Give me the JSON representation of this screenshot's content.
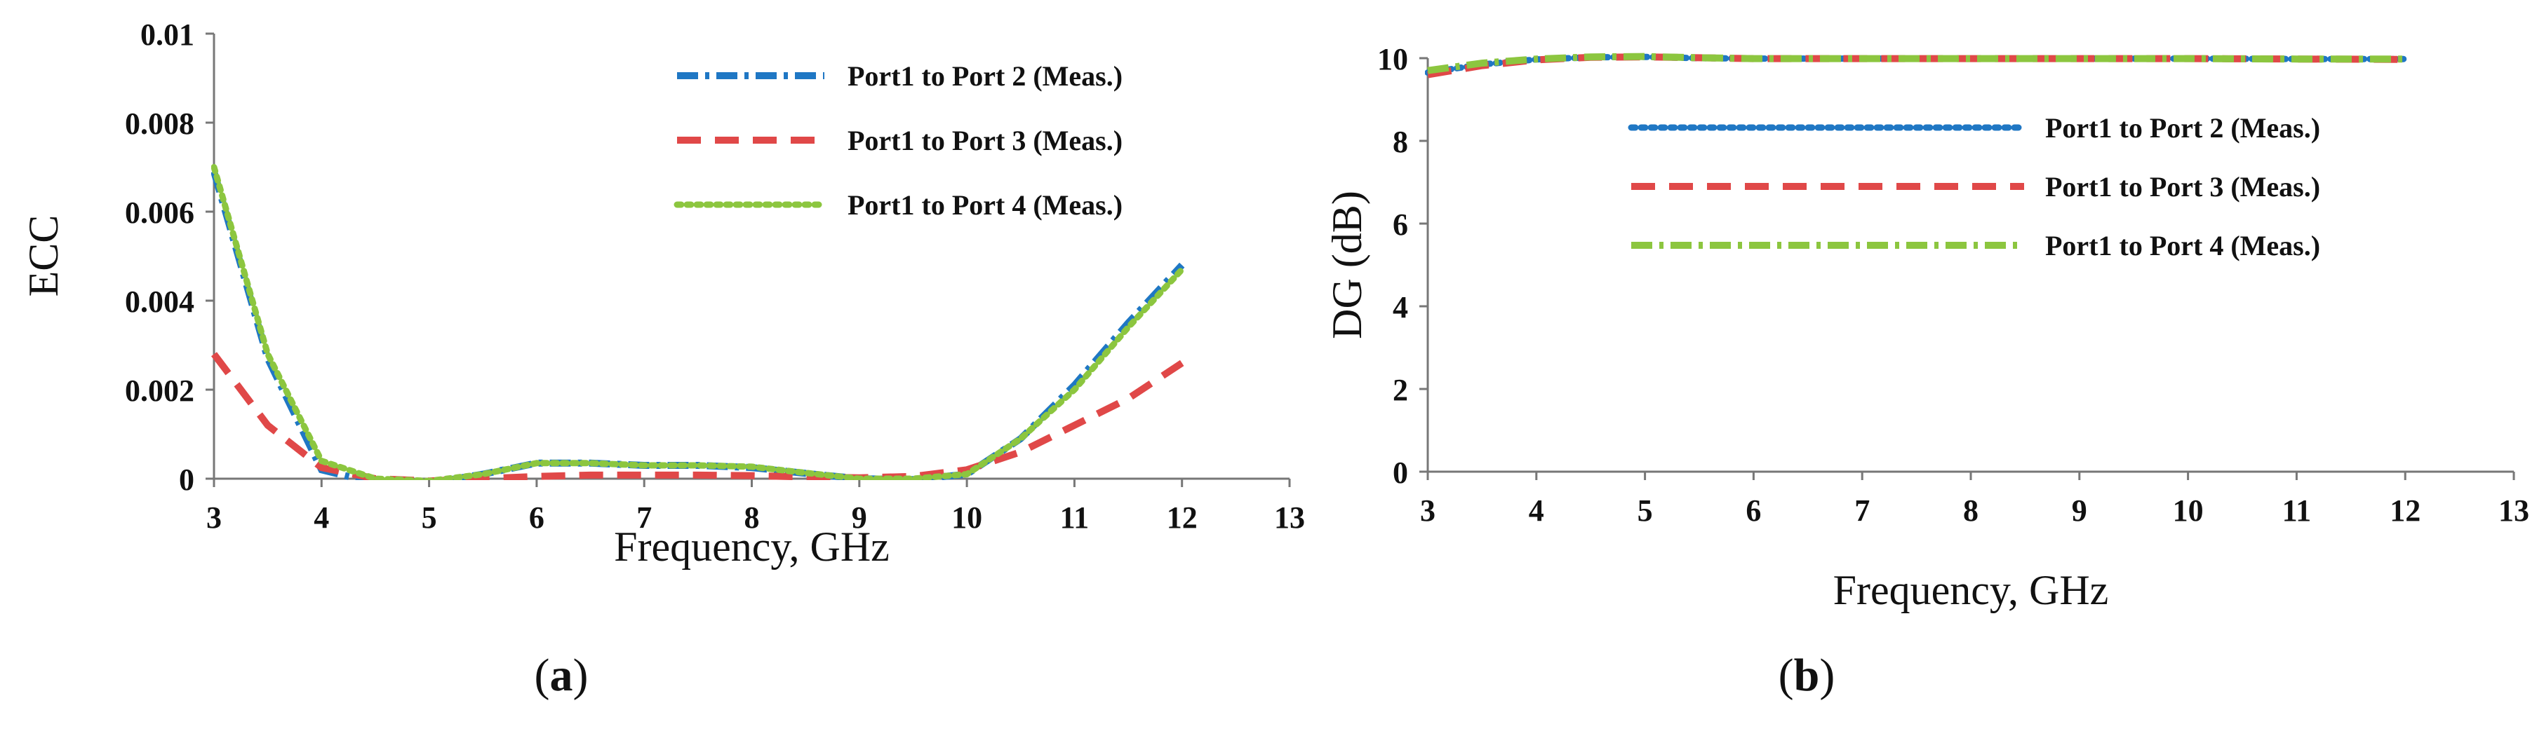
{
  "chart_data": [
    {
      "type": "line",
      "panel_label": "(a)",
      "panel_letter": "a",
      "xlabel": "Frequency,  GHz",
      "ylabel": "ECC",
      "xlim": [
        3,
        13
      ],
      "ylim": [
        0,
        0.01
      ],
      "x_ticks": [
        "3",
        "4",
        "5",
        "6",
        "7",
        "8",
        "9",
        "10",
        "11",
        "12",
        "13"
      ],
      "y_ticks": [
        "0",
        "0.002",
        "0.004",
        "0.006",
        "0.008",
        "0.01"
      ],
      "legend_position": "top-right",
      "grid": false,
      "series": [
        {
          "name": "Port1 to Port 2 (Meas.)",
          "color": "#1f77c4",
          "style": "dashdot",
          "points": [
            [
              3,
              0.0069
            ],
            [
              3.5,
              0.0027
            ],
            [
              4,
              0.0002
            ],
            [
              4.5,
              -0.0001
            ],
            [
              5,
              -0.0001
            ],
            [
              5.5,
              0.0001
            ],
            [
              6,
              0.00035
            ],
            [
              6.5,
              0.00035
            ],
            [
              7,
              0.0003
            ],
            [
              7.5,
              0.0003
            ],
            [
              8,
              0.00025
            ],
            [
              8.5,
              0.00012
            ],
            [
              9,
              0.0
            ],
            [
              9.5,
              -2e-05
            ],
            [
              10,
              0.0001
            ],
            [
              10.5,
              0.0009
            ],
            [
              11,
              0.0021
            ],
            [
              11.5,
              0.0035
            ],
            [
              12,
              0.0048
            ]
          ]
        },
        {
          "name": "Port1 to Port 3 (Meas.)",
          "color": "#e04848",
          "style": "dashed",
          "points": [
            [
              3,
              0.0028
            ],
            [
              3.5,
              0.0012
            ],
            [
              4,
              0.00025
            ],
            [
              4.5,
              0.0
            ],
            [
              5,
              -5e-05
            ],
            [
              5.5,
              0.0
            ],
            [
              6,
              5e-05
            ],
            [
              6.5,
              8e-05
            ],
            [
              7,
              8e-05
            ],
            [
              7.5,
              8e-05
            ],
            [
              8,
              7e-05
            ],
            [
              8.5,
              4e-05
            ],
            [
              9,
              2e-05
            ],
            [
              9.5,
              5e-05
            ],
            [
              10,
              0.0002
            ],
            [
              10.5,
              0.0006
            ],
            [
              11,
              0.0012
            ],
            [
              11.5,
              0.0018
            ],
            [
              12,
              0.0026
            ]
          ]
        },
        {
          "name": "Port1 to Port 4 (Meas.)",
          "color": "#8cc63f",
          "style": "dotted",
          "points": [
            [
              3,
              0.007
            ],
            [
              3.5,
              0.0028
            ],
            [
              4,
              0.0004
            ],
            [
              4.5,
              0.0
            ],
            [
              5,
              -5e-05
            ],
            [
              5.5,
              0.0001
            ],
            [
              6,
              0.00035
            ],
            [
              6.5,
              0.00035
            ],
            [
              7,
              0.0003
            ],
            [
              7.5,
              0.0003
            ],
            [
              8,
              0.00027
            ],
            [
              8.5,
              0.00013
            ],
            [
              9,
              0.0
            ],
            [
              9.5,
              0.0
            ],
            [
              10,
              0.0001
            ],
            [
              10.5,
              0.0009
            ],
            [
              11,
              0.002
            ],
            [
              11.5,
              0.0034
            ],
            [
              12,
              0.0047
            ]
          ]
        }
      ]
    },
    {
      "type": "line",
      "panel_label": "(b)",
      "panel_letter": "b",
      "xlabel": "Frequency,  GHz",
      "ylabel": "DG  (dB)",
      "xlim": [
        3,
        13
      ],
      "ylim": [
        0,
        10
      ],
      "x_ticks": [
        "3",
        "4",
        "5",
        "6",
        "7",
        "8",
        "9",
        "10",
        "11",
        "12",
        "13"
      ],
      "y_ticks": [
        "0",
        "2",
        "4",
        "6",
        "8",
        "10"
      ],
      "legend_position": "center-right",
      "grid": false,
      "series": [
        {
          "name": "Port1 to Port 2 (Meas.)",
          "color": "#1f77c4",
          "style": "dotted",
          "points": [
            [
              3,
              9.65
            ],
            [
              3.5,
              9.85
            ],
            [
              4,
              9.97
            ],
            [
              4.5,
              10.02
            ],
            [
              5,
              10.03
            ],
            [
              5.5,
              10.0
            ],
            [
              6,
              9.99
            ],
            [
              7,
              9.99
            ],
            [
              8,
              9.99
            ],
            [
              9,
              9.99
            ],
            [
              10,
              9.99
            ],
            [
              11,
              9.98
            ],
            [
              12,
              9.98
            ]
          ]
        },
        {
          "name": "Port1 to Port 3 (Meas.)",
          "color": "#e04848",
          "style": "dashed",
          "points": [
            [
              3,
              9.6
            ],
            [
              3.5,
              9.82
            ],
            [
              4,
              9.96
            ],
            [
              4.5,
              10.02
            ],
            [
              5,
              10.03
            ],
            [
              5.5,
              10.01
            ],
            [
              6,
              9.99
            ],
            [
              7,
              9.99
            ],
            [
              8,
              9.99
            ],
            [
              9,
              9.99
            ],
            [
              10,
              9.99
            ],
            [
              11,
              9.98
            ],
            [
              12,
              9.97
            ]
          ]
        },
        {
          "name": "Port1 to Port 4 (Meas.)",
          "color": "#8cc63f",
          "style": "dashdot",
          "points": [
            [
              3,
              9.7
            ],
            [
              3.5,
              9.88
            ],
            [
              4,
              9.98
            ],
            [
              4.5,
              10.03
            ],
            [
              5,
              10.04
            ],
            [
              5.5,
              10.01
            ],
            [
              6,
              9.99
            ],
            [
              7,
              9.99
            ],
            [
              8,
              9.99
            ],
            [
              9,
              9.99
            ],
            [
              10,
              9.99
            ],
            [
              11,
              9.98
            ],
            [
              12,
              9.98
            ]
          ]
        }
      ]
    }
  ]
}
